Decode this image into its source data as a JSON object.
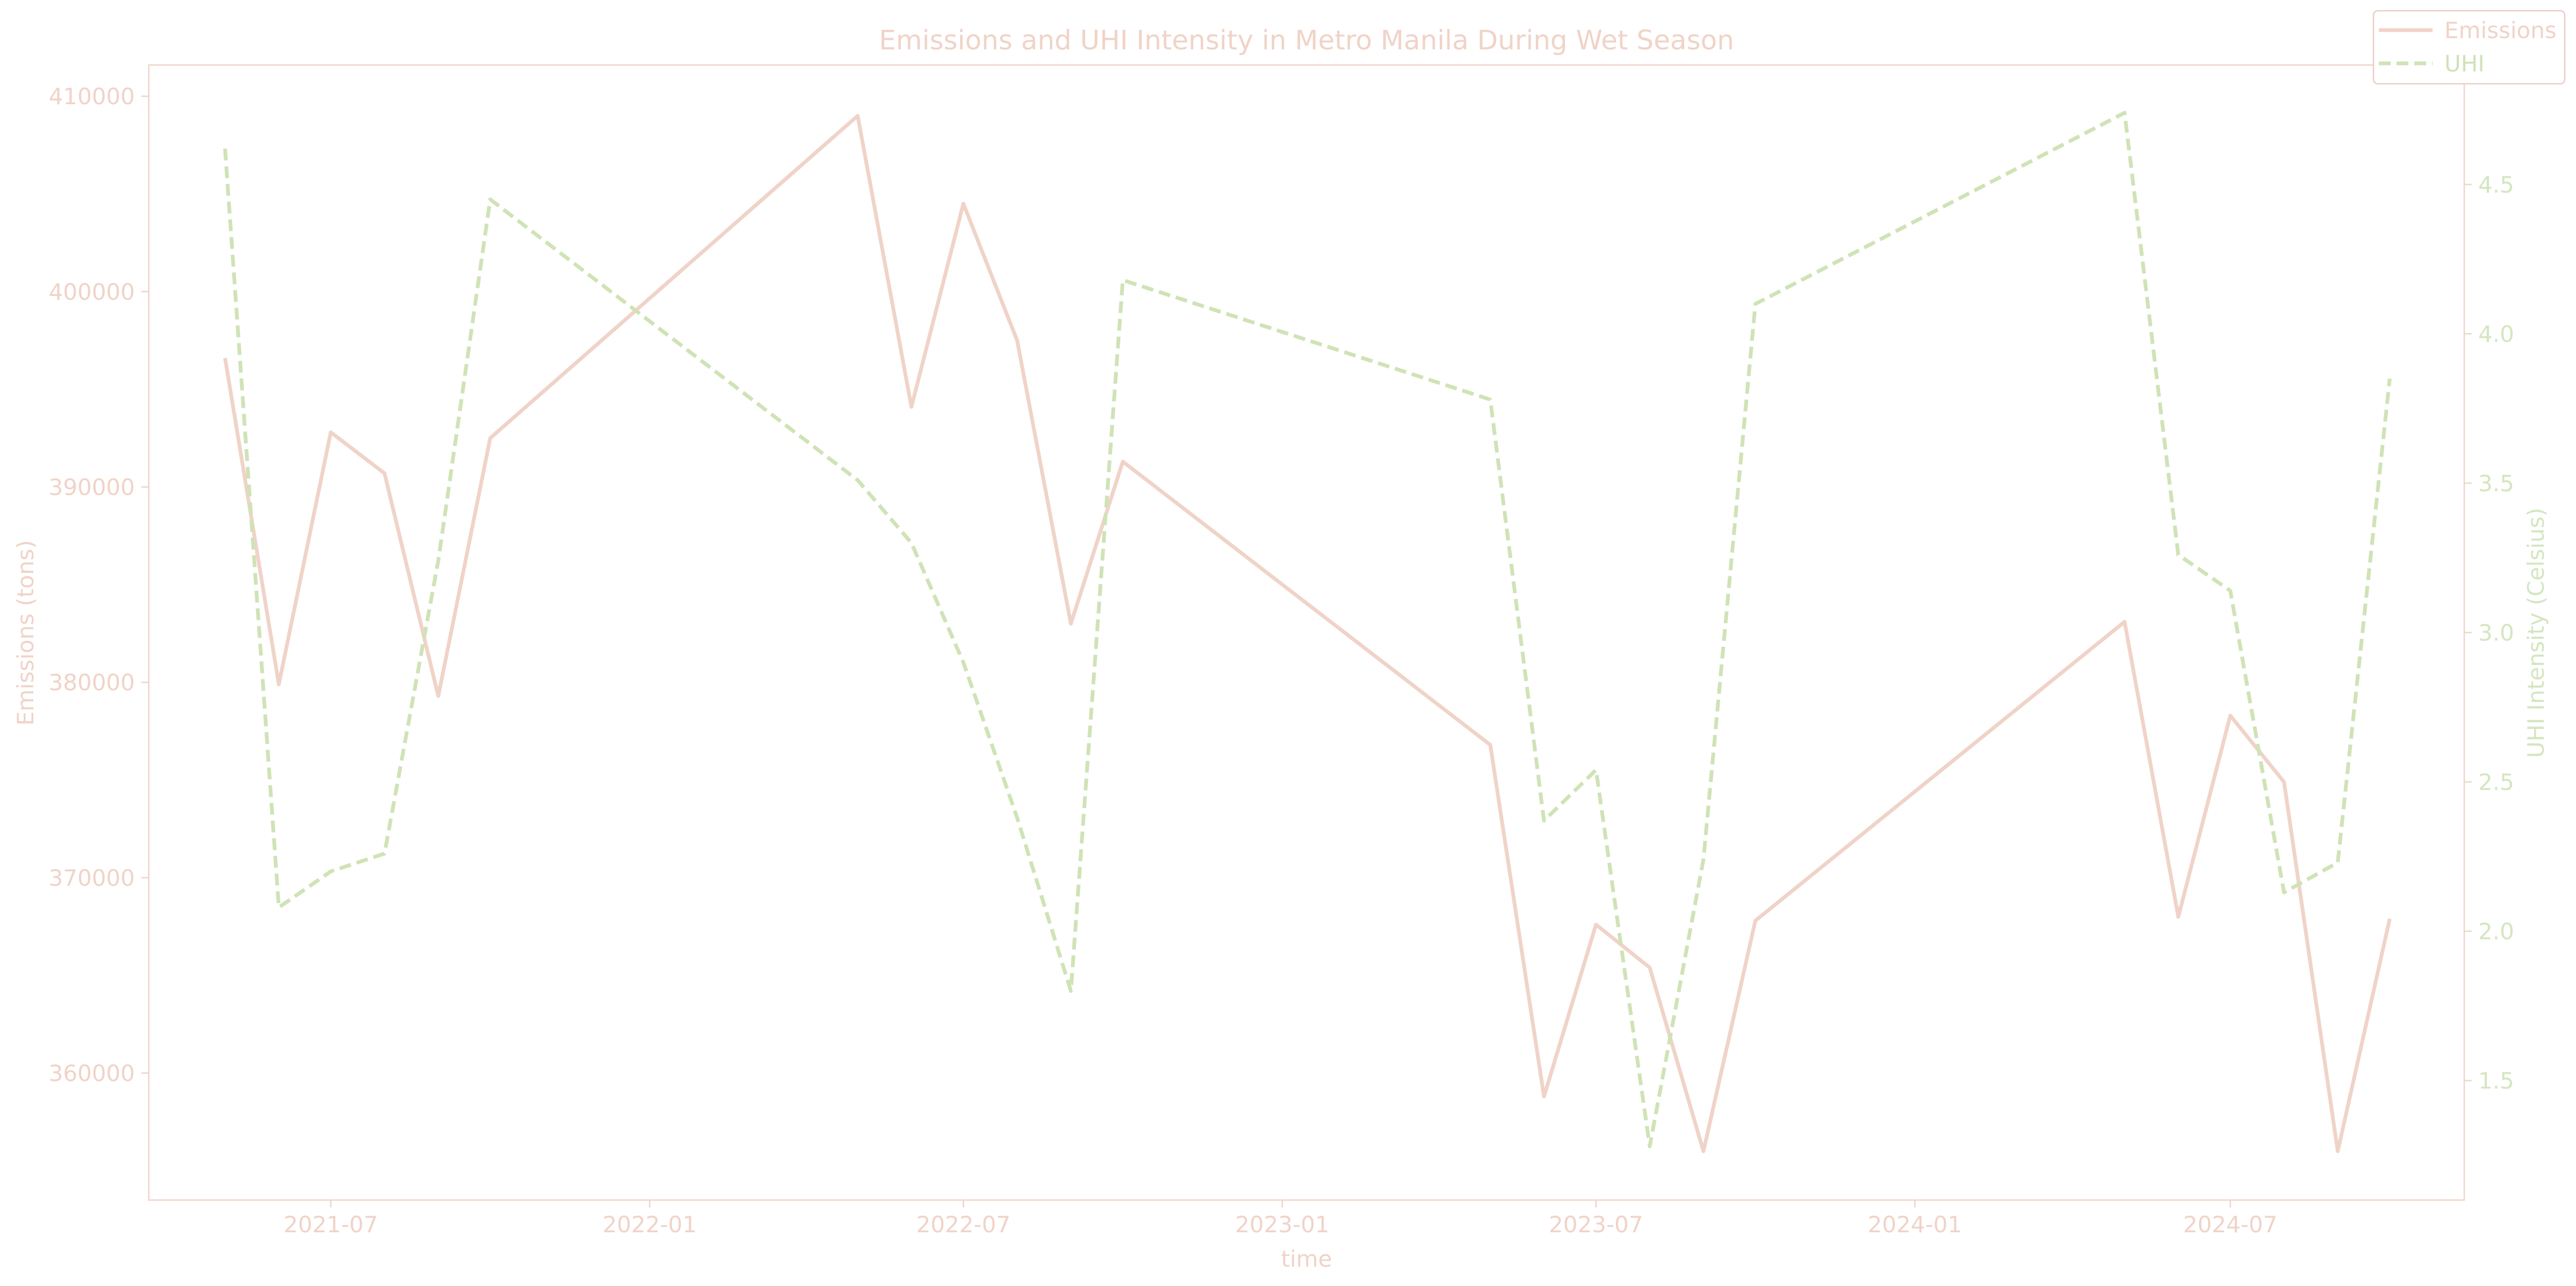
{
  "chart_data": {
    "type": "line",
    "title": "Emissions and UHI Intensity in Metro Manila During Wet Season",
    "xlabel": "time",
    "ylabel_left": "Emissions (tons)",
    "ylabel_right": "UHI Intensity (Celsius)",
    "x_ticks": [
      "2021-07",
      "2022-01",
      "2022-07",
      "2023-01",
      "2023-07",
      "2024-01",
      "2024-07"
    ],
    "y_left_ticks": [
      "360000",
      "370000",
      "380000",
      "390000",
      "400000",
      "410000"
    ],
    "y_right_ticks": [
      "1.5",
      "2.0",
      "2.5",
      "3.0",
      "3.5",
      "4.0",
      "4.5"
    ],
    "x_range": [
      "2021-03-18",
      "2024-11-13"
    ],
    "ylim_left": [
      353500,
      411600
    ],
    "ylim_right": [
      1.1,
      4.9
    ],
    "grid": false,
    "legend_position": "top-right",
    "colors": {
      "emissions": "#f0d3c8",
      "uhi": "#cfe3b6",
      "axes": "#f0d3c8"
    },
    "x": [
      "2021-05-01",
      "2021-06-01",
      "2021-07-01",
      "2021-08-01",
      "2021-09-01",
      "2021-10-01",
      "2022-05-01",
      "2022-06-01",
      "2022-07-01",
      "2022-08-01",
      "2022-09-01",
      "2022-10-01",
      "2023-05-01",
      "2023-06-01",
      "2023-07-01",
      "2023-08-01",
      "2023-09-01",
      "2023-10-01",
      "2024-05-01",
      "2024-06-01",
      "2024-07-01",
      "2024-08-01",
      "2024-09-01",
      "2024-10-01"
    ],
    "series": [
      {
        "name": "Emissions",
        "axis": "left",
        "style": "solid",
        "values": [
          396600,
          379900,
          392800,
          390700,
          379300,
          392500,
          409000,
          394100,
          404500,
          397500,
          383000,
          391300,
          376800,
          358800,
          367600,
          365400,
          356000,
          367800,
          383100,
          368000,
          378300,
          374900,
          356000,
          367900
        ]
      },
      {
        "name": "UHI",
        "axis": "right",
        "style": "dashed",
        "values": [
          4.62,
          2.08,
          2.2,
          2.26,
          3.24,
          4.45,
          3.51,
          3.3,
          2.9,
          2.38,
          1.8,
          4.18,
          3.78,
          2.37,
          2.54,
          1.28,
          2.24,
          4.1,
          4.74,
          3.26,
          3.14,
          2.13,
          2.23,
          3.85
        ]
      }
    ]
  }
}
